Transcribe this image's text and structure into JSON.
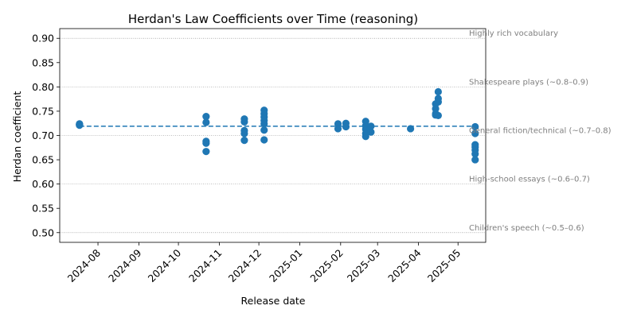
{
  "chart_data": {
    "type": "scatter",
    "title": "Herdan's Law Coefficients over Time (reasoning)",
    "xlabel": "Release date",
    "ylabel": "Herdan coefficient",
    "xlim": [
      "2024-07-03",
      "2025-05-22"
    ],
    "ylim": [
      0.48,
      0.92
    ],
    "yticks": [
      0.5,
      0.55,
      0.6,
      0.65,
      0.7,
      0.75,
      0.8,
      0.85,
      0.9
    ],
    "xticks": [
      "2024-08-01",
      "2024-09-01",
      "2024-10-01",
      "2024-11-01",
      "2024-12-01",
      "2025-01-01",
      "2025-02-01",
      "2025-03-01",
      "2025-04-01",
      "2025-05-01"
    ],
    "xtick_labels": [
      "2024-08",
      "2024-09",
      "2024-10",
      "2024-11",
      "2024-12",
      "2025-01",
      "2025-02",
      "2025-03",
      "2025-04",
      "2025-05"
    ],
    "point_color": "#1f77b4",
    "mean_line": {
      "value": 0.719,
      "style": "dashed",
      "color": "#1f77b4"
    },
    "reference_color": "#808080",
    "reference_lines": [
      {
        "y": 0.9,
        "label": "Highly rich vocabulary"
      },
      {
        "y": 0.8,
        "label": "Shakespeare plays (~0.8–0.9)"
      },
      {
        "y": 0.7,
        "label": "General fiction/technical (~0.7–0.8)"
      },
      {
        "y": 0.6,
        "label": "High-school essays (~0.6–0.7)"
      },
      {
        "y": 0.5,
        "label": "Children's speech (~0.5–0.6)"
      }
    ],
    "points": [
      {
        "x": "2024-07-18",
        "y": 0.722
      },
      {
        "x": "2024-07-18",
        "y": 0.723
      },
      {
        "x": "2024-07-18",
        "y": 0.721
      },
      {
        "x": "2024-07-18",
        "y": 0.724
      },
      {
        "x": "2024-10-22",
        "y": 0.739
      },
      {
        "x": "2024-10-22",
        "y": 0.727
      },
      {
        "x": "2024-10-22",
        "y": 0.688
      },
      {
        "x": "2024-10-22",
        "y": 0.684
      },
      {
        "x": "2024-10-22",
        "y": 0.667
      },
      {
        "x": "2024-11-20",
        "y": 0.734
      },
      {
        "x": "2024-11-20",
        "y": 0.728
      },
      {
        "x": "2024-11-20",
        "y": 0.71
      },
      {
        "x": "2024-11-20",
        "y": 0.704
      },
      {
        "x": "2024-11-20",
        "y": 0.69
      },
      {
        "x": "2024-12-05",
        "y": 0.752
      },
      {
        "x": "2024-12-05",
        "y": 0.745
      },
      {
        "x": "2024-12-05",
        "y": 0.738
      },
      {
        "x": "2024-12-05",
        "y": 0.731
      },
      {
        "x": "2024-12-05",
        "y": 0.724
      },
      {
        "x": "2024-12-05",
        "y": 0.711
      },
      {
        "x": "2024-12-05",
        "y": 0.691
      },
      {
        "x": "2025-01-30",
        "y": 0.724
      },
      {
        "x": "2025-01-30",
        "y": 0.714
      },
      {
        "x": "2025-02-05",
        "y": 0.725
      },
      {
        "x": "2025-02-05",
        "y": 0.718
      },
      {
        "x": "2025-02-20",
        "y": 0.729
      },
      {
        "x": "2025-02-20",
        "y": 0.72
      },
      {
        "x": "2025-02-20",
        "y": 0.713
      },
      {
        "x": "2025-02-20",
        "y": 0.704
      },
      {
        "x": "2025-02-20",
        "y": 0.698
      },
      {
        "x": "2025-02-24",
        "y": 0.719
      },
      {
        "x": "2025-02-24",
        "y": 0.707
      },
      {
        "x": "2025-03-26",
        "y": 0.714
      },
      {
        "x": "2025-04-14",
        "y": 0.765
      },
      {
        "x": "2025-04-14",
        "y": 0.755
      },
      {
        "x": "2025-04-14",
        "y": 0.745
      },
      {
        "x": "2025-04-14",
        "y": 0.742
      },
      {
        "x": "2025-04-16",
        "y": 0.79
      },
      {
        "x": "2025-04-16",
        "y": 0.776
      },
      {
        "x": "2025-04-16",
        "y": 0.769
      },
      {
        "x": "2025-04-16",
        "y": 0.741
      },
      {
        "x": "2025-05-14",
        "y": 0.718
      },
      {
        "x": "2025-05-14",
        "y": 0.704
      },
      {
        "x": "2025-05-14",
        "y": 0.681
      },
      {
        "x": "2025-05-14",
        "y": 0.676
      },
      {
        "x": "2025-05-14",
        "y": 0.67
      },
      {
        "x": "2025-05-14",
        "y": 0.662
      },
      {
        "x": "2025-05-14",
        "y": 0.65
      }
    ]
  }
}
